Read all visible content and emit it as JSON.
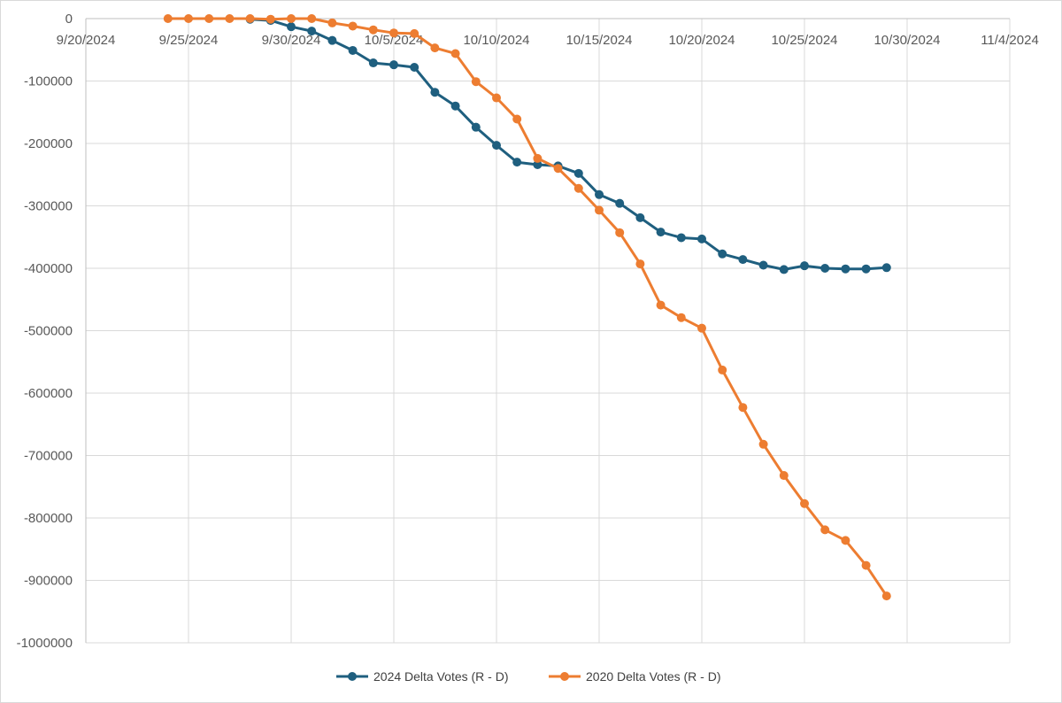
{
  "chart_data": {
    "type": "line",
    "title": "",
    "xlabel": "",
    "ylabel": "",
    "x_axis": {
      "type": "date",
      "min": "2024-09-20",
      "max": "2024-11-04",
      "ticks": [
        "2024-09-20",
        "2024-09-25",
        "2024-09-30",
        "2024-10-05",
        "2024-10-10",
        "2024-10-15",
        "2024-10-20",
        "2024-10-25",
        "2024-10-30",
        "2024-11-04"
      ],
      "tick_labels": [
        "9/20/2024",
        "9/25/2024",
        "9/30/2024",
        "10/5/2024",
        "10/10/2024",
        "10/15/2024",
        "10/20/2024",
        "10/25/2024",
        "10/30/2024",
        "11/4/2024"
      ],
      "tick_position": "top"
    },
    "y_axis": {
      "min": -1000000,
      "max": 0,
      "ticks": [
        0,
        -100000,
        -200000,
        -300000,
        -400000,
        -500000,
        -600000,
        -700000,
        -800000,
        -900000,
        -1000000
      ],
      "tick_labels": [
        "0",
        "-100000",
        "-200000",
        "-300000",
        "-400000",
        "-500000",
        "-600000",
        "-700000",
        "-800000",
        "-900000",
        "-1000000"
      ]
    },
    "grid": true,
    "legend": "bottom-center",
    "series": [
      {
        "name": "2024 Delta Votes (R - D)",
        "color": "#1f5f7f",
        "points": [
          {
            "x": "2024-09-28",
            "y": -1000
          },
          {
            "x": "2024-09-29",
            "y": -3000
          },
          {
            "x": "2024-09-30",
            "y": -13000
          },
          {
            "x": "2024-10-01",
            "y": -20000
          },
          {
            "x": "2024-10-02",
            "y": -35000
          },
          {
            "x": "2024-10-03",
            "y": -51000
          },
          {
            "x": "2024-10-04",
            "y": -71000
          },
          {
            "x": "2024-10-05",
            "y": -74000
          },
          {
            "x": "2024-10-06",
            "y": -78000
          },
          {
            "x": "2024-10-07",
            "y": -118000
          },
          {
            "x": "2024-10-08",
            "y": -140000
          },
          {
            "x": "2024-10-09",
            "y": -174000
          },
          {
            "x": "2024-10-10",
            "y": -203000
          },
          {
            "x": "2024-10-11",
            "y": -230000
          },
          {
            "x": "2024-10-12",
            "y": -234000
          },
          {
            "x": "2024-10-13",
            "y": -236000
          },
          {
            "x": "2024-10-14",
            "y": -248000
          },
          {
            "x": "2024-10-15",
            "y": -282000
          },
          {
            "x": "2024-10-16",
            "y": -296000
          },
          {
            "x": "2024-10-17",
            "y": -319000
          },
          {
            "x": "2024-10-18",
            "y": -342000
          },
          {
            "x": "2024-10-19",
            "y": -351000
          },
          {
            "x": "2024-10-20",
            "y": -353000
          },
          {
            "x": "2024-10-21",
            "y": -377000
          },
          {
            "x": "2024-10-22",
            "y": -386000
          },
          {
            "x": "2024-10-23",
            "y": -395000
          },
          {
            "x": "2024-10-24",
            "y": -402000
          },
          {
            "x": "2024-10-25",
            "y": -396000
          },
          {
            "x": "2024-10-26",
            "y": -400000
          },
          {
            "x": "2024-10-27",
            "y": -401000
          },
          {
            "x": "2024-10-28",
            "y": -401000
          },
          {
            "x": "2024-10-29",
            "y": -399000
          }
        ]
      },
      {
        "name": "2020 Delta Votes (R - D)",
        "color": "#ed7d31",
        "points": [
          {
            "x": "2024-09-24",
            "y": 0
          },
          {
            "x": "2024-09-25",
            "y": 0
          },
          {
            "x": "2024-09-26",
            "y": 0
          },
          {
            "x": "2024-09-27",
            "y": 0
          },
          {
            "x": "2024-09-28",
            "y": 0
          },
          {
            "x": "2024-09-29",
            "y": -1000
          },
          {
            "x": "2024-09-30",
            "y": 0
          },
          {
            "x": "2024-10-01",
            "y": 0
          },
          {
            "x": "2024-10-02",
            "y": -7000
          },
          {
            "x": "2024-10-03",
            "y": -12000
          },
          {
            "x": "2024-10-04",
            "y": -18000
          },
          {
            "x": "2024-10-05",
            "y": -23000
          },
          {
            "x": "2024-10-06",
            "y": -24000
          },
          {
            "x": "2024-10-07",
            "y": -47000
          },
          {
            "x": "2024-10-08",
            "y": -56000
          },
          {
            "x": "2024-10-09",
            "y": -101000
          },
          {
            "x": "2024-10-10",
            "y": -127000
          },
          {
            "x": "2024-10-11",
            "y": -161000
          },
          {
            "x": "2024-10-12",
            "y": -224000
          },
          {
            "x": "2024-10-13",
            "y": -240000
          },
          {
            "x": "2024-10-14",
            "y": -272000
          },
          {
            "x": "2024-10-15",
            "y": -307000
          },
          {
            "x": "2024-10-16",
            "y": -343000
          },
          {
            "x": "2024-10-17",
            "y": -393000
          },
          {
            "x": "2024-10-18",
            "y": -459000
          },
          {
            "x": "2024-10-19",
            "y": -479000
          },
          {
            "x": "2024-10-20",
            "y": -496000
          },
          {
            "x": "2024-10-21",
            "y": -563000
          },
          {
            "x": "2024-10-22",
            "y": -623000
          },
          {
            "x": "2024-10-23",
            "y": -682000
          },
          {
            "x": "2024-10-24",
            "y": -732000
          },
          {
            "x": "2024-10-25",
            "y": -777000
          },
          {
            "x": "2024-10-26",
            "y": -819000
          },
          {
            "x": "2024-10-27",
            "y": -836000
          },
          {
            "x": "2024-10-28",
            "y": -876000
          },
          {
            "x": "2024-10-29",
            "y": -925000
          }
        ]
      }
    ]
  }
}
